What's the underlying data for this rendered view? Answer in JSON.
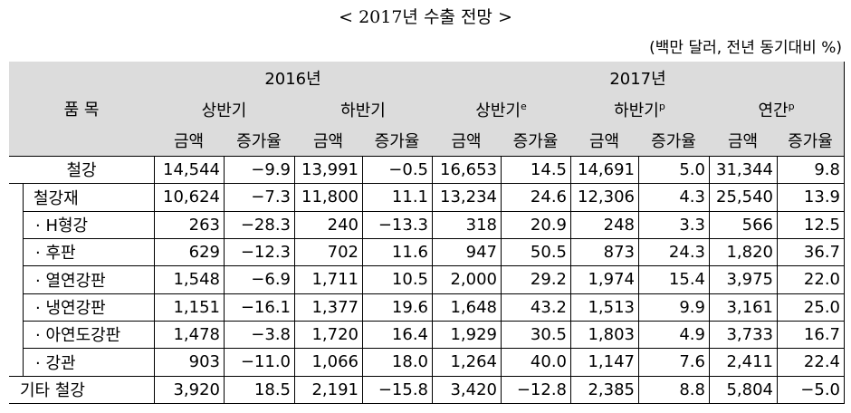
{
  "header": {
    "title": "< 2017년 수출 전망 >",
    "unit": "(백만 달러, 전년 동기대비 %)"
  },
  "table": {
    "item_header": "품 목",
    "years": [
      {
        "label": "2016년",
        "periods": [
          {
            "label": "상반기",
            "columns": [
              "금액",
              "증가율"
            ]
          },
          {
            "label": "하반기",
            "columns": [
              "금액",
              "증가율"
            ]
          }
        ]
      },
      {
        "label": "2017년",
        "periods": [
          {
            "label": "상반기",
            "note": "e",
            "columns": [
              "금액",
              "증가율"
            ]
          },
          {
            "label": "하반기",
            "note": "p",
            "columns": [
              "금액",
              "증가율"
            ]
          },
          {
            "label": "연간",
            "note": "p",
            "columns": [
              "금액",
              "증가율"
            ]
          }
        ]
      }
    ],
    "rows": [
      {
        "label": "철강",
        "values": [
          "14,544",
          "−9.9",
          "13,991",
          "−0.5",
          "16,653",
          "14.5",
          "14,691",
          "5.0",
          "31,344",
          "9.8"
        ]
      },
      {
        "label": "철강재",
        "values": [
          "10,624",
          "−7.3",
          "11,800",
          "11.1",
          "13,234",
          "24.6",
          "12,306",
          "4.3",
          "25,540",
          "13.9"
        ]
      },
      {
        "label": "· H형강",
        "values": [
          "263",
          "−28.3",
          "240",
          "−13.3",
          "318",
          "20.9",
          "248",
          "3.3",
          "566",
          "12.5"
        ]
      },
      {
        "label": "· 후판",
        "values": [
          "629",
          "−12.3",
          "702",
          "11.6",
          "947",
          "50.5",
          "873",
          "24.3",
          "1,820",
          "36.7"
        ]
      },
      {
        "label": "· 열연강판",
        "values": [
          "1,548",
          "−6.9",
          "1,711",
          "10.5",
          "2,000",
          "29.2",
          "1,974",
          "15.4",
          "3,975",
          "22.0"
        ]
      },
      {
        "label": "· 냉연강판",
        "values": [
          "1,151",
          "−16.1",
          "1,377",
          "19.6",
          "1,648",
          "43.2",
          "1,513",
          "9.9",
          "3,161",
          "25.0"
        ]
      },
      {
        "label": "· 아연도강판",
        "values": [
          "1,478",
          "−3.8",
          "1,720",
          "16.4",
          "1,929",
          "30.5",
          "1,803",
          "4.9",
          "3,733",
          "16.7"
        ]
      },
      {
        "label": "· 강관",
        "values": [
          "903",
          "−11.0",
          "1,066",
          "18.0",
          "1,264",
          "40.0",
          "1,147",
          "7.6",
          "2,411",
          "22.4"
        ]
      },
      {
        "label": "기타 철강",
        "values": [
          "3,920",
          "18.5",
          "2,191",
          "−15.8",
          "3,420",
          "−12.8",
          "2,385",
          "8.8",
          "5,804",
          "−5.0"
        ]
      }
    ]
  }
}
